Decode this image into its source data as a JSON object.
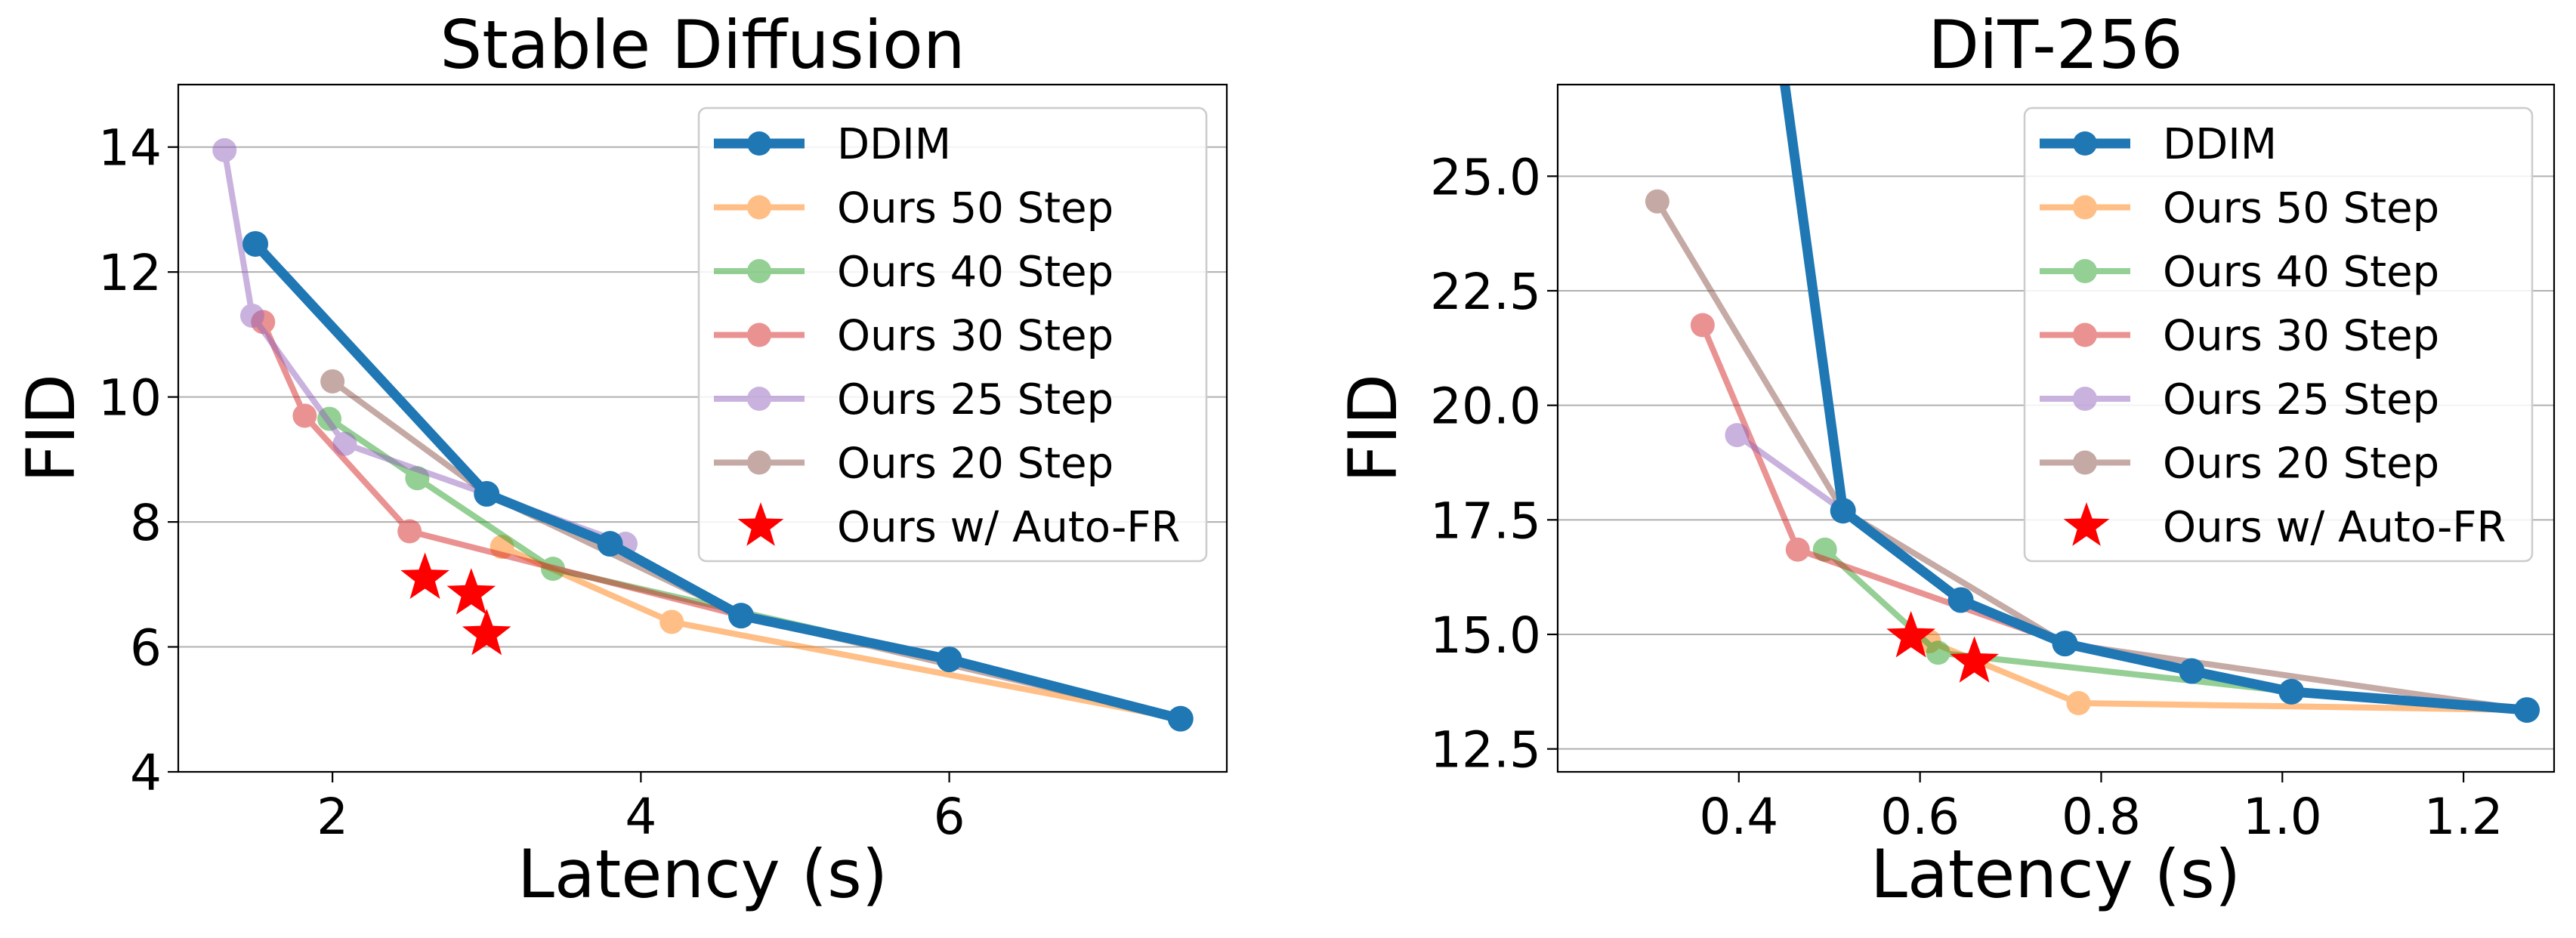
{
  "chart_data": [
    {
      "type": "line",
      "title": "Stable Diffusion",
      "xlabel": "Latency (s)",
      "ylabel": "FID",
      "xlim": [
        1.0,
        7.8
      ],
      "ylim": [
        4,
        15
      ],
      "xticks": [
        2,
        4,
        6
      ],
      "yticks": [
        4,
        6,
        8,
        10,
        12,
        14
      ],
      "xtick_labels": [
        "2",
        "4",
        "6"
      ],
      "ytick_labels": [
        "4",
        "6",
        "8",
        "10",
        "12",
        "14"
      ],
      "grid": "horizontal",
      "legend_position": "top-right",
      "series": [
        {
          "name": "DDIM",
          "color": "#1f77b4",
          "style": "thick",
          "points": [
            [
              1.5,
              12.45
            ],
            [
              3.0,
              8.45
            ],
            [
              3.8,
              7.65
            ],
            [
              4.65,
              6.5
            ],
            [
              6.0,
              5.8
            ],
            [
              7.5,
              4.85
            ]
          ]
        },
        {
          "name": "Ours 50 Step",
          "color": "#ff7f0e",
          "points": [
            [
              3.1,
              7.6
            ],
            [
              4.2,
              6.4
            ],
            [
              7.5,
              4.85
            ]
          ]
        },
        {
          "name": "Ours 40 Step",
          "color": "#2ca02c",
          "points": [
            [
              1.98,
              9.65
            ],
            [
              2.55,
              8.7
            ],
            [
              3.43,
              7.25
            ],
            [
              6.0,
              5.8
            ]
          ]
        },
        {
          "name": "Ours 30 Step",
          "color": "#d62728",
          "points": [
            [
              1.55,
              11.2
            ],
            [
              1.82,
              9.7
            ],
            [
              2.5,
              7.85
            ],
            [
              4.65,
              6.5
            ]
          ]
        },
        {
          "name": "Ours 25 Step",
          "color": "#9467bd",
          "points": [
            [
              1.3,
              13.95
            ],
            [
              1.48,
              11.3
            ],
            [
              2.08,
              9.25
            ],
            [
              3.0,
              8.45
            ],
            [
              3.9,
              7.65
            ]
          ]
        },
        {
          "name": "Ours 20 Step",
          "color": "#8c564b",
          "points": [
            [
              2.0,
              10.25
            ],
            [
              3.0,
              8.45
            ],
            [
              4.65,
              6.5
            ],
            [
              7.5,
              4.85
            ]
          ]
        }
      ],
      "stars": {
        "name": "Ours w/ Auto-FR",
        "color": "#ff0000",
        "points": [
          [
            2.6,
            7.1
          ],
          [
            2.9,
            6.85
          ],
          [
            3.0,
            6.2
          ]
        ]
      }
    },
    {
      "type": "line",
      "title": "DiT-256",
      "xlabel": "Latency (s)",
      "ylabel": "FID",
      "xlim": [
        0.2,
        1.3
      ],
      "ylim": [
        12.0,
        27.0
      ],
      "xticks": [
        0.4,
        0.6,
        0.8,
        1.0,
        1.2
      ],
      "yticks": [
        12.5,
        15.0,
        17.5,
        20.0,
        22.5,
        25.0
      ],
      "xtick_labels": [
        "0.4",
        "0.6",
        "0.8",
        "1.0",
        "1.2"
      ],
      "ytick_labels": [
        "12.5",
        "15.0",
        "17.5",
        "20.0",
        "22.5",
        "25.0"
      ],
      "grid": "horizontal",
      "legend_position": "top-right",
      "series": [
        {
          "name": "DDIM",
          "color": "#1f77b4",
          "style": "thick",
          "points": [
            [
              0.43,
              30.0
            ],
            [
              0.515,
              17.7
            ],
            [
              0.645,
              15.75
            ],
            [
              0.76,
              14.8
            ],
            [
              0.9,
              14.2
            ],
            [
              1.01,
              13.75
            ],
            [
              1.27,
              13.35
            ]
          ]
        },
        {
          "name": "Ours 50 Step",
          "color": "#ff7f0e",
          "points": [
            [
              0.61,
              14.85
            ],
            [
              0.775,
              13.5
            ],
            [
              1.27,
              13.35
            ]
          ]
        },
        {
          "name": "Ours 40 Step",
          "color": "#2ca02c",
          "points": [
            [
              0.495,
              16.85
            ],
            [
              0.62,
              14.6
            ],
            [
              1.01,
              13.75
            ]
          ]
        },
        {
          "name": "Ours 30 Step",
          "color": "#d62728",
          "points": [
            [
              0.36,
              21.75
            ],
            [
              0.465,
              16.85
            ],
            [
              0.76,
              14.8
            ]
          ]
        },
        {
          "name": "Ours 25 Step",
          "color": "#9467bd",
          "points": [
            [
              0.398,
              19.35
            ],
            [
              0.515,
              17.7
            ],
            [
              0.645,
              15.75
            ]
          ]
        },
        {
          "name": "Ours 20 Step",
          "color": "#8c564b",
          "points": [
            [
              0.31,
              24.45
            ],
            [
              0.515,
              17.7
            ],
            [
              0.76,
              14.8
            ],
            [
              1.27,
              13.35
            ]
          ]
        }
      ],
      "stars": {
        "name": "Ours w/ Auto-FR",
        "color": "#ff0000",
        "points": [
          [
            0.59,
            14.95
          ],
          [
            0.66,
            14.4
          ]
        ]
      }
    }
  ]
}
